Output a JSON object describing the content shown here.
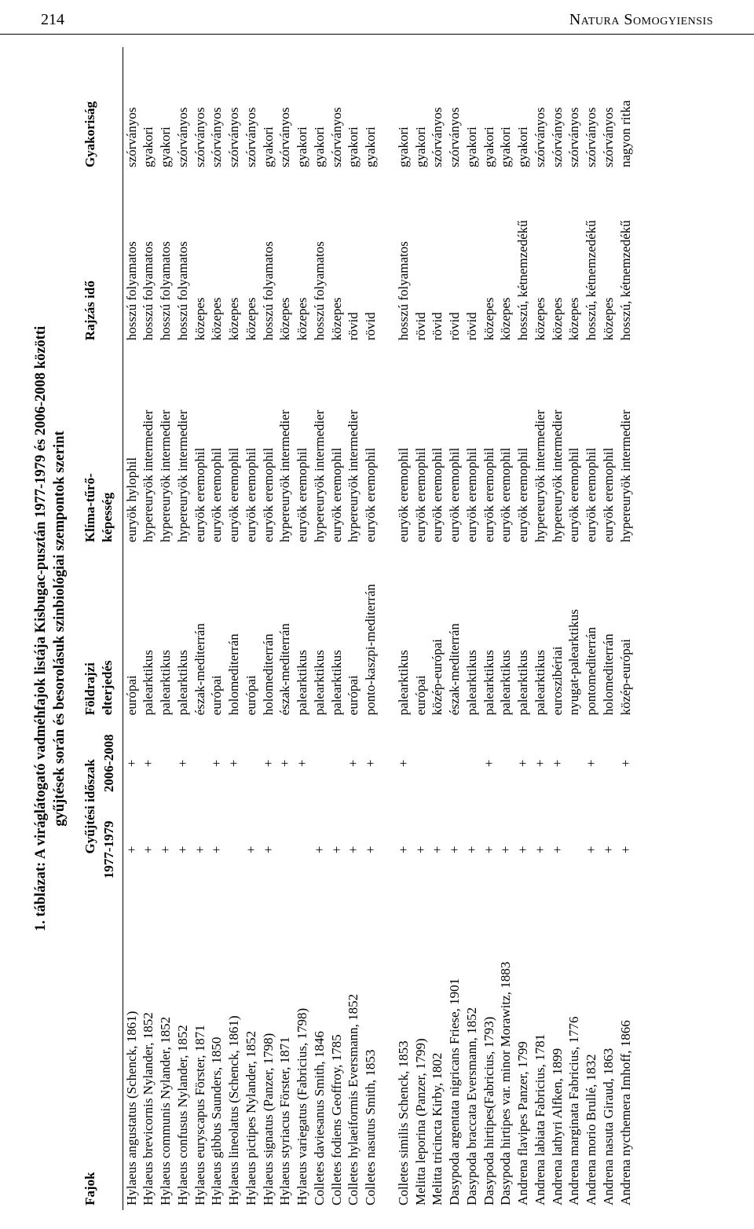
{
  "header": {
    "page_number": "214",
    "journal": "Natura Somogyiensis"
  },
  "table": {
    "title_line1": "1. táblázat: A viráglátogató vadméhfajok listája Kisbugac-pusztán 1977-1979 és 2006-2008 közötti",
    "title_line2": "gyűjtések során és besorolásuk szinbiológiai szempontok szerint",
    "columns": {
      "fajok": "Fajok",
      "gyujtesi": "Gyűjtési időszak",
      "p1": "1977-1979",
      "p2": "2006-2008",
      "foldrajzi": "Földrajzi\nelterjedés",
      "klima": "Klíma-tűrő-\nképesség",
      "rajzas": "Rajzás idő",
      "gyakorisag": "Gyakoriság"
    },
    "block1": [
      {
        "fajok": "Hylaeus angustatus (Schenck, 1861)",
        "p1": "+",
        "p2": "+",
        "foldrajzi": "európai",
        "klima": "euryök hylophil",
        "rajzas": "hosszú folyamatos",
        "gyak": "szórványos"
      },
      {
        "fajok": "Hylaeus brevicornis Nylander, 1852",
        "p1": "+",
        "p2": "+",
        "foldrajzi": "palearktikus",
        "klima": "hypereuryök intermedier",
        "rajzas": "hosszú folyamatos",
        "gyak": "gyakori"
      },
      {
        "fajok": "Hylaeus communis Nylander, 1852",
        "p1": "+",
        "p2": "",
        "foldrajzi": "palearktikus",
        "klima": "hypereuryök intermedier",
        "rajzas": "hosszú folyamatos",
        "gyak": "gyakori"
      },
      {
        "fajok": "Hylaeus confusus Nylander, 1852",
        "p1": "+",
        "p2": "+",
        "foldrajzi": "palearktikus",
        "klima": "hypereuryök intermedier",
        "rajzas": "hosszú folyamatos",
        "gyak": "szórványos"
      },
      {
        "fajok": "Hylaeus euryscapus Förster, 1871",
        "p1": "+",
        "p2": "",
        "foldrajzi": "észak-mediterrán",
        "klima": "euryök eremophil",
        "rajzas": "közepes",
        "gyak": "szórványos"
      },
      {
        "fajok": "Hylaeus gibbus Saunders, 1850",
        "p1": "+",
        "p2": "+",
        "foldrajzi": "európai",
        "klima": "euryök eremophil",
        "rajzas": "közepes",
        "gyak": "szórványos"
      },
      {
        "fajok": "Hylaeus lineolatus (Schenck, 1861)",
        "p1": "",
        "p2": "+",
        "foldrajzi": "holomediterrán",
        "klima": "euryök eremophil",
        "rajzas": "közepes",
        "gyak": "szórványos"
      },
      {
        "fajok": "Hylaeus pictipes Nylander, 1852",
        "p1": "+",
        "p2": "",
        "foldrajzi": "európai",
        "klima": "euryök eremophil",
        "rajzas": "közepes",
        "gyak": "szórványos"
      },
      {
        "fajok": "Hylaeus signatus (Panzer, 1798)",
        "p1": "+",
        "p2": "+",
        "foldrajzi": "holomediterrán",
        "klima": "euryök eremophil",
        "rajzas": "hosszú folyamatos",
        "gyak": "gyakori"
      },
      {
        "fajok": "Hylaeus styriacus Förster, 1871",
        "p1": "",
        "p2": "+",
        "foldrajzi": "észak-mediterrán",
        "klima": "hypereuryök intermedier",
        "rajzas": "közepes",
        "gyak": "szórványos"
      },
      {
        "fajok": "Hylaeus variegatus (Fabricius, 1798)",
        "p1": "",
        "p2": "+",
        "foldrajzi": "palearktikus",
        "klima": "euryök eremophil",
        "rajzas": "közepes",
        "gyak": "gyakori"
      },
      {
        "fajok": "Colletes daviesanus Smith, 1846",
        "p1": "+",
        "p2": "",
        "foldrajzi": "palearktikus",
        "klima": "hypereuryök intermedier",
        "rajzas": "hosszú folyamatos",
        "gyak": "gyakori"
      },
      {
        "fajok": "Colletes fodiens Geoffroy, 1785",
        "p1": "+",
        "p2": "",
        "foldrajzi": "palearktikus",
        "klima": "euryök eremophil",
        "rajzas": "közepes",
        "gyak": "szórványos"
      },
      {
        "fajok": "Colletes hylaeiformis Eversmann, 1852",
        "p1": "+",
        "p2": "+",
        "foldrajzi": "európai",
        "klima": "hypereuryök intermedier",
        "rajzas": "rövid",
        "gyak": "gyakori"
      },
      {
        "fajok": "Colletes nasutus Smith, 1853",
        "p1": "+",
        "p2": "+",
        "foldrajzi": "ponto-kaszpi-mediterrán",
        "klima": "euryök eremophil",
        "rajzas": "rövid",
        "gyak": "gyakori"
      }
    ],
    "block2": [
      {
        "fajok": "Colletes similis Schenck, 1853",
        "p1": "+",
        "p2": "+",
        "foldrajzi": "palearktikus",
        "klima": "euryök eremophil",
        "rajzas": "hosszú folyamatos",
        "gyak": "gyakori"
      },
      {
        "fajok": "Melitta leporina (Panzer, 1799)",
        "p1": "+",
        "p2": "",
        "foldrajzi": "európai",
        "klima": "euryök eremophil",
        "rajzas": "rövid",
        "gyak": "gyakori"
      },
      {
        "fajok": "Melitta tricincta Kirby, 1802",
        "p1": "+",
        "p2": "",
        "foldrajzi": "közép-európai",
        "klima": "euryök eremophil",
        "rajzas": "rövid",
        "gyak": "szórványos"
      },
      {
        "fajok": "Dasypoda argentata nigricans Friese, 1901",
        "p1": "+",
        "p2": "",
        "foldrajzi": "észak-mediterrán",
        "klima": "euryök eremophil",
        "rajzas": "rövid",
        "gyak": "szórványos"
      },
      {
        "fajok": "Dasypoda braccata Eversmann, 1852",
        "p1": "+",
        "p2": "",
        "foldrajzi": "palearktikus",
        "klima": "euryök eremophil",
        "rajzas": "rövid",
        "gyak": "gyakori"
      },
      {
        "fajok": "Dasypoda hirtipes(Fabricius, 1793)",
        "p1": "+",
        "p2": "+",
        "foldrajzi": "palearktikus",
        "klima": "euryök eremophil",
        "rajzas": "közepes",
        "gyak": "gyakori"
      },
      {
        "fajok": "Dasypoda hirtipes var. minor Morawitz, 1883",
        "p1": "+",
        "p2": "",
        "foldrajzi": "palearktikus",
        "klima": "euryök eremophil",
        "rajzas": "közepes",
        "gyak": "gyakori"
      },
      {
        "fajok": "Andrena flavipes Panzer, 1799",
        "p1": "+",
        "p2": "+",
        "foldrajzi": "palearktikus",
        "klima": "euryök eremophil",
        "rajzas": "hosszú, kétnemzedékű",
        "gyak": "gyakori"
      },
      {
        "fajok": "Andrena labiata Fabricius, 1781",
        "p1": "+",
        "p2": "+",
        "foldrajzi": "palearktikus",
        "klima": "hypereuryök intermedier",
        "rajzas": "közepes",
        "gyak": "szórványos"
      },
      {
        "fajok": "Andrena lathyri Alfken, 1899",
        "p1": "+",
        "p2": "+",
        "foldrajzi": "euroszibériai",
        "klima": "hypereuryök intermedier",
        "rajzas": "közepes",
        "gyak": "szórványos"
      },
      {
        "fajok": "Andrena marginata Fabricius, 1776",
        "p1": "",
        "p2": "",
        "foldrajzi": "nyugat-palearktikus",
        "klima": "euryök eremophil",
        "rajzas": "közepes",
        "gyak": "szórványos"
      },
      {
        "fajok": "Andrena morio Brullé, 1832",
        "p1": "+",
        "p2": "+",
        "foldrajzi": "pontomediterrán",
        "klima": "euryök eremophil",
        "rajzas": "hosszú, kétnemzedékű",
        "gyak": "szórványos"
      },
      {
        "fajok": "Andrena nasuta Giraud, 1863",
        "p1": "+",
        "p2": "",
        "foldrajzi": "holomediterrán",
        "klima": "euryök eremophil",
        "rajzas": "közepes",
        "gyak": "szórványos"
      },
      {
        "fajok": "Andrena nycthemera Imhoff, 1866",
        "p1": "+",
        "p2": "+",
        "foldrajzi": "közép-európai",
        "klima": "hypereuryök intermedier",
        "rajzas": "hosszú, kétnemzedékű",
        "gyak": "nagyon ritka"
      }
    ]
  }
}
